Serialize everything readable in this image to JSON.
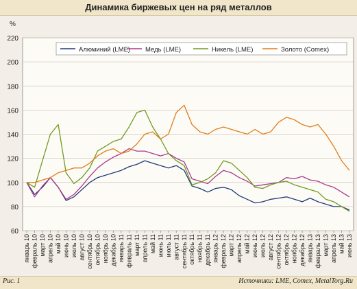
{
  "chart_data": {
    "type": "line",
    "title": "Динамика биржевых цен на ряд металлов",
    "ylabel": "%",
    "ylim": [
      60,
      220
    ],
    "yticks": [
      "60",
      "80",
      "100",
      "120",
      "140",
      "160",
      "180",
      "200",
      "220"
    ],
    "grid": true,
    "legend_position": "top-right",
    "categories": [
      "январь 10",
      "февраль 10",
      "март 10",
      "апрель 10",
      "май 10",
      "июнь 10",
      "июль 10",
      "август 10",
      "сентябрь 10",
      "октябрь 10",
      "ноябрь 10",
      "декабрь 10",
      "январь 11",
      "февраль 11",
      "март 11",
      "апрель 11",
      "май 11",
      "июнь 11",
      "июль 11",
      "август 11",
      "сентябрь 11",
      "октябрь 11",
      "ноябрь 11",
      "декабрь 11",
      "январь 12",
      "февраль 12",
      "март 12",
      "апрель 12",
      "май 12",
      "июнь 12",
      "июль 12",
      "август 12",
      "сентябрь 12",
      "октябрь 12",
      "ноябрь 12",
      "декабрь 12",
      "январь 13",
      "февраль 13",
      "март 13",
      "апрель 13",
      "май 13",
      "июнь 13"
    ],
    "series": [
      {
        "name": "Алюминий (LME)",
        "color": "#1f3a78",
        "values": [
          100,
          90,
          96,
          104,
          96,
          85,
          88,
          94,
          100,
          104,
          106,
          108,
          110,
          113,
          115,
          118,
          116,
          114,
          112,
          114,
          110,
          97,
          95,
          92,
          95,
          96,
          94,
          89,
          86,
          83,
          84,
          86,
          87,
          88,
          86,
          84,
          87,
          84,
          82,
          80,
          80,
          77
        ]
      },
      {
        "name": "Медь (LME)",
        "color": "#a83a8a",
        "values": [
          100,
          88,
          97,
          104,
          96,
          86,
          90,
          97,
          105,
          112,
          117,
          121,
          124,
          128,
          126,
          126,
          124,
          122,
          124,
          120,
          117,
          103,
          101,
          99,
          105,
          110,
          108,
          104,
          101,
          97,
          98,
          99,
          100,
          104,
          103,
          105,
          102,
          101,
          98,
          96,
          92,
          88
        ]
      },
      {
        "name": "Никель (LME)",
        "color": "#6f9a1f",
        "values": [
          100,
          96,
          118,
          140,
          148,
          108,
          99,
          104,
          112,
          126,
          130,
          134,
          136,
          146,
          158,
          160,
          146,
          136,
          124,
          118,
          114,
          98,
          100,
          103,
          108,
          118,
          116,
          110,
          104,
          96,
          95,
          98,
          100,
          101,
          98,
          96,
          94,
          92,
          86,
          84,
          80,
          76
        ]
      },
      {
        "name": "Золото (Comex)",
        "color": "#e07c1a",
        "values": [
          100,
          100,
          102,
          104,
          108,
          110,
          112,
          112,
          116,
          122,
          126,
          128,
          124,
          126,
          132,
          140,
          142,
          136,
          140,
          158,
          164,
          148,
          142,
          140,
          144,
          146,
          144,
          142,
          140,
          144,
          140,
          142,
          150,
          154,
          152,
          148,
          146,
          148,
          140,
          130,
          118,
          110
        ]
      }
    ]
  },
  "figure_label": "Рис. 1",
  "source_text": "Источники: LME, Comex, MetalTorg.Ru"
}
